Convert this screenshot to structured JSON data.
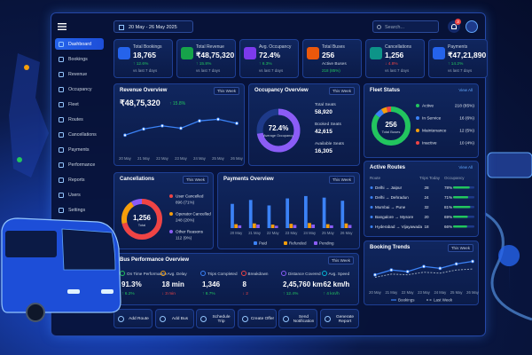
{
  "header": {
    "date_range": "20 May - 26 May 2025",
    "search_placeholder": "Search...",
    "notification_count": "3"
  },
  "sidebar": {
    "items": [
      "Dashboard",
      "Bookings",
      "Revenue",
      "Occupancy",
      "Fleet",
      "Routes",
      "Cancellations",
      "Payments",
      "Performance",
      "Reports",
      "Users",
      "Settings"
    ]
  },
  "kpis": [
    {
      "title": "Total Bookings",
      "value": "18,765",
      "change": "↑ 12.6%",
      "note": "vs last 7 days"
    },
    {
      "title": "Total Revenue",
      "value": "₹48,75,320",
      "change": "↑ 15.8%",
      "note": "vs last 7 days"
    },
    {
      "title": "Avg. Occupancy",
      "value": "72.4%",
      "change": "↑ 6.3%",
      "note": "vs last 7 days"
    },
    {
      "title": "Total Buses",
      "value": "256",
      "change": "Active Buses",
      "note": "218 (85%)"
    },
    {
      "title": "Cancellations",
      "value": "1,256",
      "change": "↓ 4.8%",
      "note": "vs last 7 days"
    },
    {
      "title": "Payments",
      "value": "₹47,21,890",
      "change": "↑ 14.2%",
      "note": "vs last 7 days"
    }
  ],
  "revenue_overview": {
    "title": "Revenue Overview",
    "period": "This Week",
    "value": "₹48,75,320",
    "change": "↑ 15.8%",
    "chart": {
      "type": "line",
      "categories": [
        "20 May",
        "21 May",
        "22 May",
        "23 May",
        "24 May",
        "25 May",
        "26 May"
      ],
      "values": [
        45,
        60,
        68,
        62,
        80,
        84,
        74
      ],
      "color": "#3b82f6",
      "ylim": [
        0,
        100
      ]
    }
  },
  "occupancy_overview": {
    "title": "Occupancy Overview",
    "period": "This Week",
    "center_label": "Average Occupancy",
    "chart": {
      "type": "donut",
      "value": 72.4,
      "value_label": "72.4%",
      "range": [
        0,
        100
      ],
      "color": "#8b5cf6"
    },
    "stats": [
      {
        "label": "Total Seats",
        "value": "58,920"
      },
      {
        "label": "Booked Seats",
        "value": "42,615"
      },
      {
        "label": "Available Seats",
        "value": "16,305"
      }
    ]
  },
  "fleet_status": {
    "title": "Fleet Status",
    "link": "View All",
    "center_value": "256",
    "center_label": "Total Buses",
    "chart": {
      "type": "donut",
      "categories": [
        "Active",
        "In Service",
        "Maintenance",
        "Inactive"
      ],
      "values": [
        218,
        16,
        12,
        10
      ],
      "value_labels": [
        "218 (85%)",
        "16 (6%)",
        "12 (5%)",
        "10 (4%)"
      ],
      "colors": [
        "#22c55e",
        "#3b82f6",
        "#f59e0b",
        "#ef4444"
      ]
    }
  },
  "cancellations": {
    "title": "Cancellations",
    "period": "This Week",
    "center_value": "1,256",
    "center_label": "Total",
    "chart": {
      "type": "donut",
      "categories": [
        "User Cancelled",
        "Operator Cancelled",
        "Other Reasons"
      ],
      "values": [
        896,
        248,
        112
      ],
      "value_labels": [
        "896 (71%)",
        "248 (20%)",
        "112 (9%)"
      ],
      "colors": [
        "#ef4444",
        "#f59e0b",
        "#8b5cf6"
      ]
    }
  },
  "payments_overview": {
    "title": "Payments Overview",
    "period": "This Week",
    "chart": {
      "type": "bar",
      "categories": [
        "20 May",
        "21 May",
        "22 May",
        "23 May",
        "24 May",
        "25 May",
        "26 May"
      ],
      "series": [
        {
          "name": "Paid",
          "color": "#3b82f6",
          "values": [
            62,
            72,
            58,
            76,
            82,
            78,
            70
          ]
        },
        {
          "name": "Refunded",
          "color": "#f59e0b",
          "values": [
            10,
            12,
            9,
            11,
            13,
            10,
            12
          ]
        },
        {
          "name": "Pending",
          "color": "#8b5cf6",
          "values": [
            7,
            9,
            6,
            8,
            9,
            7,
            8
          ]
        }
      ],
      "ylim": [
        0,
        100
      ]
    }
  },
  "active_routes": {
    "title": "Active Routes",
    "link": "View All",
    "columns": [
      "Route",
      "Trips Today",
      "Occupancy"
    ],
    "occupancy_range": [
      0,
      100
    ],
    "rows": [
      {
        "route": "Delhi → Jaipur",
        "trips": "28",
        "occupancy": 78,
        "occupancy_label": "78%"
      },
      {
        "route": "Delhi → Dehradun",
        "trips": "24",
        "occupancy": 71,
        "occupancy_label": "71%"
      },
      {
        "route": "Mumbai → Pune",
        "trips": "32",
        "occupancy": 81,
        "occupancy_label": "81%"
      },
      {
        "route": "Bangalore → Mysore",
        "trips": "20",
        "occupancy": 69,
        "occupancy_label": "69%"
      },
      {
        "route": "Hyderabad → Vijayawada",
        "trips": "18",
        "occupancy": 66,
        "occupancy_label": "66%"
      }
    ]
  },
  "booking_trends": {
    "title": "Booking Trends",
    "period": "This Week",
    "chart": {
      "type": "line",
      "categories": [
        "20 May",
        "21 May",
        "22 May",
        "23 May",
        "24 May",
        "25 May",
        "26 May"
      ],
      "series": [
        {
          "name": "Bookings",
          "color": "#3b82f6",
          "values": [
            40,
            55,
            50,
            66,
            60,
            74,
            82
          ]
        },
        {
          "name": "Last Week",
          "color": "#94a3b8",
          "values": [
            32,
            42,
            40,
            48,
            45,
            55,
            58
          ]
        }
      ],
      "ylim": [
        0,
        100
      ]
    }
  },
  "bus_performance": {
    "title": "Bus Performance Overview",
    "period": "This Week",
    "metrics": [
      {
        "label": "On Time Performance",
        "value": "91.3%",
        "change": "↑ 6.2%"
      },
      {
        "label": "Avg. Delay",
        "value": "18 min",
        "change": "↓ 3 min"
      },
      {
        "label": "Trips Completed",
        "value": "1,346",
        "change": "↑ 8.7%"
      },
      {
        "label": "Breakdown",
        "value": "8",
        "change": "↓ 2"
      },
      {
        "label": "Distance Covered",
        "value": "2,45,760 km",
        "change": "↑ 12.4%"
      },
      {
        "label": "Avg. Speed",
        "value": "62 km/h",
        "change": "↑ 4 km/h"
      }
    ]
  },
  "quick_actions": [
    "Add Route",
    "Add Bus",
    "Schedule Trip",
    "Create Offer",
    "Send Notification",
    "Generate Report"
  ]
}
